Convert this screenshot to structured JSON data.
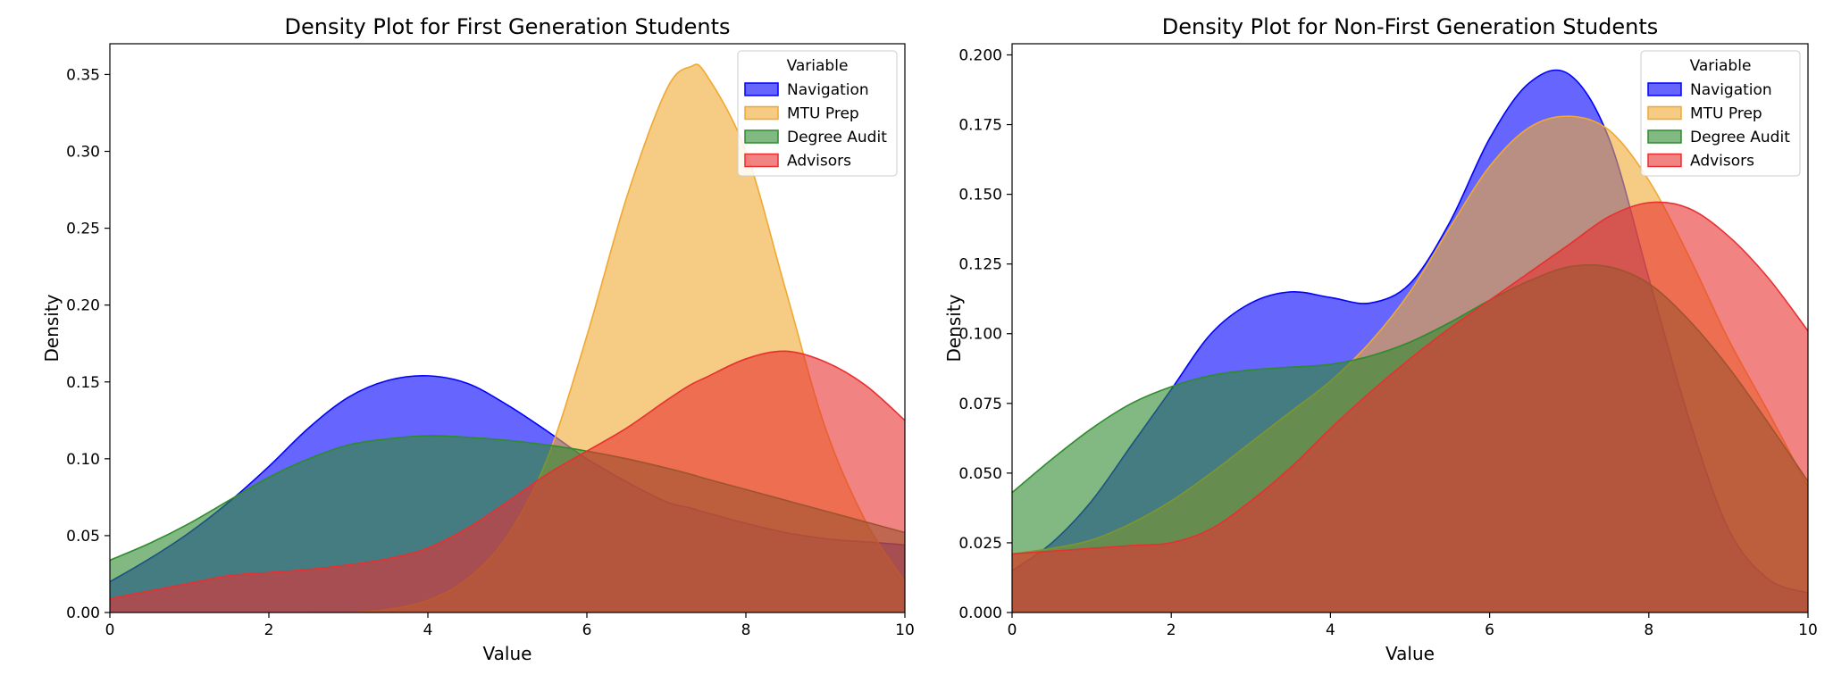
{
  "chart_data": [
    {
      "type": "area",
      "title": "Density Plot for First Generation Students",
      "xlabel": "Value",
      "ylabel": "Density",
      "xlim": [
        0,
        10
      ],
      "ylim": [
        0,
        0.37
      ],
      "xticks": [
        0,
        2,
        4,
        6,
        8,
        10
      ],
      "yticks": [
        0.0,
        0.05,
        0.1,
        0.15,
        0.2,
        0.25,
        0.3,
        0.35
      ],
      "xtick_labels": [
        "0",
        "2",
        "4",
        "6",
        "8",
        "10"
      ],
      "ytick_labels": [
        "0.00",
        "0.05",
        "0.10",
        "0.15",
        "0.20",
        "0.25",
        "0.30",
        "0.35"
      ],
      "grid": false,
      "legend": {
        "title": "Variable",
        "placement": "top-right"
      },
      "x": [
        0,
        0.5,
        1,
        1.5,
        2,
        2.5,
        3,
        3.5,
        4,
        4.5,
        5,
        5.5,
        6,
        6.5,
        7,
        7.3,
        7.5,
        8,
        8.5,
        9,
        9.5,
        10
      ],
      "series": [
        {
          "name": "Navigation",
          "color": "#0000ff",
          "values": [
            0.02,
            0.035,
            0.052,
            0.072,
            0.095,
            0.12,
            0.14,
            0.151,
            0.154,
            0.149,
            0.135,
            0.118,
            0.1,
            0.085,
            0.072,
            0.068,
            0.065,
            0.058,
            0.052,
            0.048,
            0.046,
            0.044
          ]
        },
        {
          "name": "MTU Prep",
          "color": "#f0a830",
          "values": [
            0.0,
            0.0,
            0.0,
            0.0,
            0.0,
            0.0,
            0.0,
            0.002,
            0.008,
            0.022,
            0.05,
            0.1,
            0.18,
            0.27,
            0.34,
            0.355,
            0.35,
            0.3,
            0.21,
            0.12,
            0.06,
            0.02
          ]
        },
        {
          "name": "Degree Audit",
          "color": "#2e8b2e",
          "values": [
            0.034,
            0.045,
            0.058,
            0.073,
            0.088,
            0.1,
            0.109,
            0.113,
            0.115,
            0.114,
            0.112,
            0.109,
            0.105,
            0.1,
            0.094,
            0.09,
            0.087,
            0.08,
            0.073,
            0.066,
            0.059,
            0.052
          ]
        },
        {
          "name": "Advisors",
          "color": "#e83030",
          "values": [
            0.009,
            0.014,
            0.019,
            0.024,
            0.026,
            0.028,
            0.031,
            0.035,
            0.042,
            0.055,
            0.072,
            0.09,
            0.105,
            0.12,
            0.138,
            0.148,
            0.153,
            0.165,
            0.17,
            0.163,
            0.148,
            0.125
          ]
        }
      ]
    },
    {
      "type": "area",
      "title": "Density Plot for Non-First Generation Students",
      "xlabel": "Value",
      "ylabel": "Density",
      "xlim": [
        0,
        10
      ],
      "ylim": [
        0,
        0.204
      ],
      "xticks": [
        0,
        2,
        4,
        6,
        8,
        10
      ],
      "yticks": [
        0.0,
        0.025,
        0.05,
        0.075,
        0.1,
        0.125,
        0.15,
        0.175,
        0.2
      ],
      "xtick_labels": [
        "0",
        "2",
        "4",
        "6",
        "8",
        "10"
      ],
      "ytick_labels": [
        "0.000",
        "0.025",
        "0.050",
        "0.075",
        "0.100",
        "0.125",
        "0.150",
        "0.175",
        "0.200"
      ],
      "grid": false,
      "legend": {
        "title": "Variable",
        "placement": "top-right"
      },
      "x": [
        0,
        0.5,
        1,
        1.5,
        2,
        2.5,
        3,
        3.5,
        4,
        4.5,
        5,
        5.5,
        6,
        6.5,
        7,
        7.5,
        8,
        8.5,
        9,
        9.5,
        10
      ],
      "series": [
        {
          "name": "Navigation",
          "color": "#0000ff",
          "values": [
            0.015,
            0.025,
            0.04,
            0.06,
            0.08,
            0.1,
            0.111,
            0.115,
            0.113,
            0.111,
            0.118,
            0.14,
            0.17,
            0.19,
            0.193,
            0.17,
            0.12,
            0.07,
            0.03,
            0.012,
            0.007
          ]
        },
        {
          "name": "MTU Prep",
          "color": "#f0a830",
          "values": [
            0.021,
            0.023,
            0.026,
            0.032,
            0.04,
            0.05,
            0.061,
            0.072,
            0.083,
            0.097,
            0.115,
            0.138,
            0.16,
            0.174,
            0.178,
            0.173,
            0.155,
            0.128,
            0.098,
            0.072,
            0.045
          ]
        },
        {
          "name": "Degree Audit",
          "color": "#2e8b2e",
          "values": [
            0.043,
            0.055,
            0.066,
            0.075,
            0.081,
            0.085,
            0.087,
            0.088,
            0.089,
            0.092,
            0.097,
            0.104,
            0.112,
            0.119,
            0.124,
            0.124,
            0.118,
            0.105,
            0.088,
            0.068,
            0.047
          ]
        },
        {
          "name": "Advisors",
          "color": "#e83030",
          "values": [
            0.021,
            0.022,
            0.023,
            0.024,
            0.025,
            0.03,
            0.04,
            0.052,
            0.066,
            0.079,
            0.091,
            0.102,
            0.112,
            0.122,
            0.132,
            0.142,
            0.147,
            0.145,
            0.135,
            0.12,
            0.101
          ]
        }
      ]
    }
  ]
}
